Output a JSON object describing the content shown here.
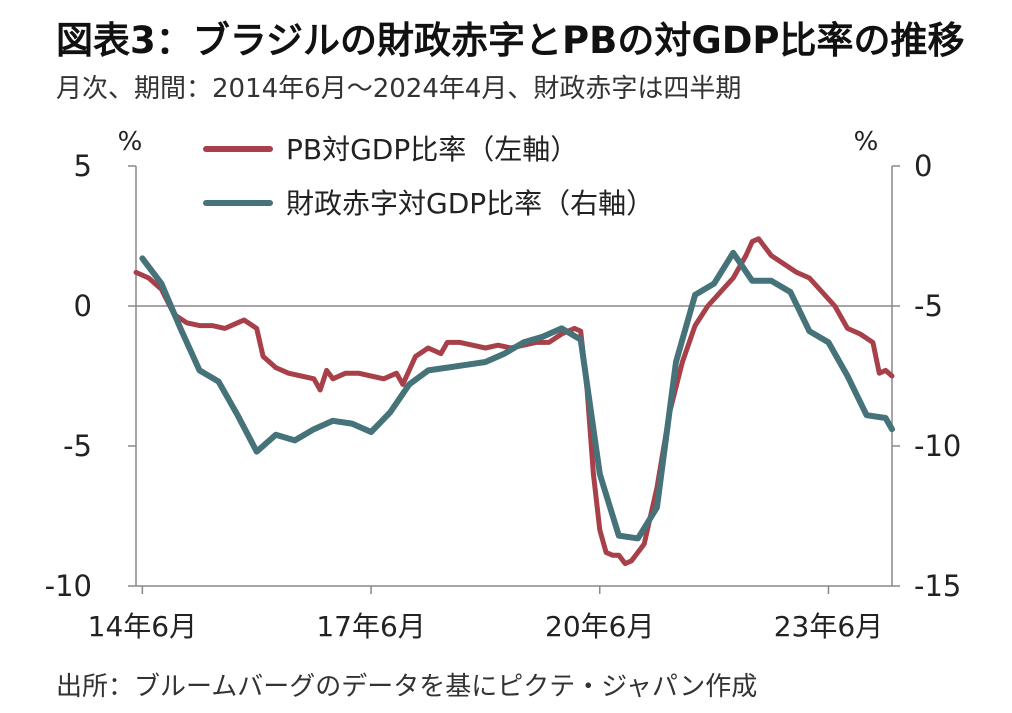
{
  "title": "図表3：ブラジルの財政赤字とPBの対GDP比率の推移",
  "subtitle": "月次、期間：2014年6月～2024年4月、財政赤字は四半期",
  "source": "出所：ブルームバーグのデータを基にピクテ・ジャパン作成",
  "chart_data": {
    "type": "line",
    "x_range": [
      "2014-05",
      "2024-04"
    ],
    "x_ticks": [
      {
        "date": "2014-06",
        "label": "14年6月"
      },
      {
        "date": "2017-06",
        "label": "17年6月"
      },
      {
        "date": "2020-06",
        "label": "20年6月"
      },
      {
        "date": "2023-06",
        "label": "23年6月"
      }
    ],
    "y_left": {
      "unit": "%",
      "ylim": [
        -10,
        5
      ],
      "ticks": [
        5,
        0,
        -5,
        -10
      ],
      "tick_labels": [
        "5",
        "0",
        "-5",
        "-10"
      ]
    },
    "y_right": {
      "unit": "%",
      "ylim": [
        -15,
        0
      ],
      "ticks": [
        0,
        -5,
        -10,
        -15
      ],
      "tick_labels": [
        "0",
        "-5",
        "-10",
        "-15"
      ]
    },
    "grid": "horizontal line at 0 (left axis)",
    "legend_position": "top-left",
    "series": [
      {
        "name": "PB対GDP比率（左軸）",
        "axis": "left",
        "color": "#a8404a",
        "points": [
          [
            "2014-05",
            1.2
          ],
          [
            "2014-07",
            1.0
          ],
          [
            "2014-09",
            0.6
          ],
          [
            "2014-11",
            -0.3
          ],
          [
            "2015-01",
            -0.6
          ],
          [
            "2015-03",
            -0.7
          ],
          [
            "2015-05",
            -0.7
          ],
          [
            "2015-07",
            -0.8
          ],
          [
            "2015-09",
            -0.6
          ],
          [
            "2015-10",
            -0.5
          ],
          [
            "2015-12",
            -0.8
          ],
          [
            "2016-01",
            -1.8
          ],
          [
            "2016-03",
            -2.2
          ],
          [
            "2016-05",
            -2.4
          ],
          [
            "2016-07",
            -2.5
          ],
          [
            "2016-09",
            -2.6
          ],
          [
            "2016-10",
            -3.0
          ],
          [
            "2016-11",
            -2.3
          ],
          [
            "2016-12",
            -2.6
          ],
          [
            "2017-02",
            -2.4
          ],
          [
            "2017-04",
            -2.4
          ],
          [
            "2017-06",
            -2.5
          ],
          [
            "2017-08",
            -2.6
          ],
          [
            "2017-10",
            -2.4
          ],
          [
            "2017-11",
            -2.8
          ],
          [
            "2018-01",
            -1.8
          ],
          [
            "2018-03",
            -1.5
          ],
          [
            "2018-05",
            -1.7
          ],
          [
            "2018-06",
            -1.3
          ],
          [
            "2018-08",
            -1.3
          ],
          [
            "2018-10",
            -1.4
          ],
          [
            "2018-12",
            -1.5
          ],
          [
            "2019-02",
            -1.4
          ],
          [
            "2019-04",
            -1.5
          ],
          [
            "2019-06",
            -1.4
          ],
          [
            "2019-08",
            -1.3
          ],
          [
            "2019-10",
            -1.3
          ],
          [
            "2019-12",
            -1.0
          ],
          [
            "2020-02",
            -0.8
          ],
          [
            "2020-03",
            -0.9
          ],
          [
            "2020-04",
            -3.0
          ],
          [
            "2020-05",
            -6.0
          ],
          [
            "2020-06",
            -8.0
          ],
          [
            "2020-07",
            -8.8
          ],
          [
            "2020-08",
            -8.9
          ],
          [
            "2020-09",
            -8.9
          ],
          [
            "2020-10",
            -9.2
          ],
          [
            "2020-11",
            -9.1
          ],
          [
            "2020-12",
            -8.8
          ],
          [
            "2021-01",
            -8.5
          ],
          [
            "2021-03",
            -6.5
          ],
          [
            "2021-05",
            -3.8
          ],
          [
            "2021-07",
            -2.0
          ],
          [
            "2021-09",
            -0.7
          ],
          [
            "2021-11",
            0.0
          ],
          [
            "2022-01",
            0.5
          ],
          [
            "2022-03",
            1.0
          ],
          [
            "2022-05",
            1.8
          ],
          [
            "2022-06",
            2.3
          ],
          [
            "2022-07",
            2.4
          ],
          [
            "2022-09",
            1.8
          ],
          [
            "2022-11",
            1.5
          ],
          [
            "2023-01",
            1.2
          ],
          [
            "2023-03",
            1.0
          ],
          [
            "2023-05",
            0.5
          ],
          [
            "2023-07",
            0.0
          ],
          [
            "2023-09",
            -0.8
          ],
          [
            "2023-11",
            -1.0
          ],
          [
            "2024-01",
            -1.3
          ],
          [
            "2024-02",
            -2.4
          ],
          [
            "2024-03",
            -2.3
          ],
          [
            "2024-04",
            -2.5
          ]
        ]
      },
      {
        "name": "財政赤字対GDP比率（右軸）",
        "axis": "right",
        "color": "#46737a",
        "points": [
          [
            "2014-06",
            -3.3
          ],
          [
            "2014-09",
            -4.2
          ],
          [
            "2014-12",
            -5.8
          ],
          [
            "2015-03",
            -7.3
          ],
          [
            "2015-06",
            -7.7
          ],
          [
            "2015-09",
            -8.9
          ],
          [
            "2015-12",
            -10.2
          ],
          [
            "2016-03",
            -9.6
          ],
          [
            "2016-06",
            -9.8
          ],
          [
            "2016-09",
            -9.4
          ],
          [
            "2016-12",
            -9.1
          ],
          [
            "2017-03",
            -9.2
          ],
          [
            "2017-06",
            -9.5
          ],
          [
            "2017-09",
            -8.8
          ],
          [
            "2017-12",
            -7.8
          ],
          [
            "2018-03",
            -7.3
          ],
          [
            "2018-06",
            -7.2
          ],
          [
            "2018-09",
            -7.1
          ],
          [
            "2018-12",
            -7.0
          ],
          [
            "2019-03",
            -6.7
          ],
          [
            "2019-06",
            -6.3
          ],
          [
            "2019-09",
            -6.1
          ],
          [
            "2019-12",
            -5.8
          ],
          [
            "2020-03",
            -6.2
          ],
          [
            "2020-06",
            -11.0
          ],
          [
            "2020-09",
            -13.2
          ],
          [
            "2020-12",
            -13.3
          ],
          [
            "2021-03",
            -12.2
          ],
          [
            "2021-06",
            -7.0
          ],
          [
            "2021-09",
            -4.6
          ],
          [
            "2021-12",
            -4.2
          ],
          [
            "2022-03",
            -3.1
          ],
          [
            "2022-06",
            -4.1
          ],
          [
            "2022-09",
            -4.1
          ],
          [
            "2022-12",
            -4.5
          ],
          [
            "2023-03",
            -5.9
          ],
          [
            "2023-06",
            -6.3
          ],
          [
            "2023-09",
            -7.5
          ],
          [
            "2023-12",
            -8.9
          ],
          [
            "2024-03",
            -9.0
          ],
          [
            "2024-04",
            -9.4
          ]
        ]
      }
    ]
  }
}
